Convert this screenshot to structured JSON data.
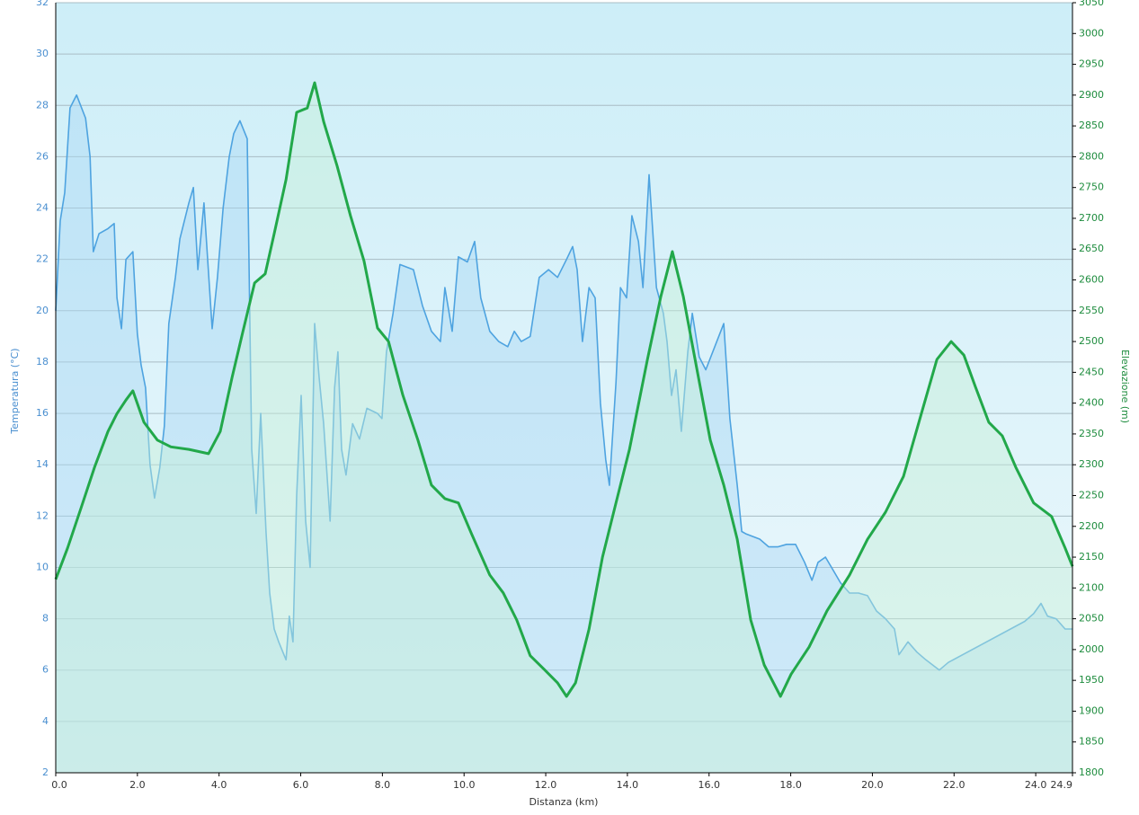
{
  "chart_data": {
    "type": "line",
    "x_label": "Distanza  (km)",
    "y_label": "Temperatura (°C)",
    "y2_label": "Elevazione (m)",
    "xlim": [
      0,
      24.9
    ],
    "xticks": [
      {
        "value": 0,
        "label": "0.0"
      },
      {
        "value": 2,
        "label": "2.0"
      },
      {
        "value": 4,
        "label": "4.0"
      },
      {
        "value": 6,
        "label": "6.0"
      },
      {
        "value": 8,
        "label": "8.0"
      },
      {
        "value": 10,
        "label": "10.0"
      },
      {
        "value": 12,
        "label": "12.0"
      },
      {
        "value": 14,
        "label": "14.0"
      },
      {
        "value": 16,
        "label": "16.0"
      },
      {
        "value": 18,
        "label": "18.0"
      },
      {
        "value": 20,
        "label": "20.0"
      },
      {
        "value": 22,
        "label": "22.0"
      },
      {
        "value": 24,
        "label": "24.0"
      },
      24.9
    ],
    "ylim": [
      2,
      32
    ],
    "yticks": [
      2,
      4,
      6,
      8,
      10,
      12,
      14,
      16,
      18,
      20,
      22,
      24,
      26,
      28,
      30,
      32
    ],
    "y2lim": [
      1800,
      3050
    ],
    "y2ticks": [
      1800,
      1850,
      1900,
      1950,
      2000,
      2050,
      2100,
      2150,
      2200,
      2250,
      2300,
      2350,
      2400,
      2450,
      2500,
      2550,
      2600,
      2650,
      2700,
      2750,
      2800,
      2850,
      2900,
      2950,
      3000,
      3050
    ],
    "grid": true,
    "series": [
      {
        "color": "#4ea3e0",
        "fill": "#a9d6f3",
        "axis": "y",
        "x": [
          0,
          0.11,
          0.22,
          0.35,
          0.51,
          0.73,
          0.84,
          0.92,
          1.06,
          1.28,
          1.43,
          1.5,
          1.61,
          1.72,
          1.89,
          2,
          2.09,
          2.2,
          2.31,
          2.42,
          2.55,
          2.66,
          2.77,
          2.93,
          3.04,
          3.26,
          3.37,
          3.48,
          3.63,
          3.83,
          3.96,
          4.1,
          4.25,
          4.36,
          4.51,
          4.69,
          4.8,
          4.91,
          5.02,
          5.15,
          5.24,
          5.35,
          5.46,
          5.64,
          5.72,
          5.81,
          5.9,
          6.01,
          6.12,
          6.23,
          6.34,
          6.45,
          6.56,
          6.72,
          6.83,
          6.91,
          7,
          7.11,
          7.27,
          7.44,
          7.62,
          7.88,
          7.99,
          8.1,
          8.26,
          8.43,
          8.76,
          8.98,
          9.2,
          9.42,
          9.53,
          9.71,
          9.86,
          10.08,
          10.26,
          10.41,
          10.63,
          10.85,
          11.07,
          11.23,
          11.4,
          11.62,
          11.84,
          12.07,
          12.29,
          12.51,
          12.66,
          12.77,
          12.9,
          13.06,
          13.21,
          13.34,
          13.47,
          13.56,
          13.72,
          13.83,
          13.98,
          14.11,
          14.27,
          14.38,
          14.53,
          14.71,
          14.88,
          14.97,
          15.08,
          15.19,
          15.32,
          15.48,
          15.59,
          15.76,
          15.92,
          16.14,
          16.36,
          16.51,
          16.69,
          16.8,
          16.91,
          17.24,
          17.46,
          17.68,
          17.9,
          18.12,
          18.34,
          18.52,
          18.67,
          18.85,
          19,
          19.22,
          19.44,
          19.66,
          19.88,
          20.1,
          20.32,
          20.54,
          20.65,
          20.87,
          21.09,
          21.31,
          21.64,
          21.86,
          23.73,
          23.95,
          24.13,
          24.29,
          24.5,
          24.72,
          24.9
        ],
        "values": [
          20,
          23.5,
          24.6,
          27.9,
          28.4,
          27.5,
          26,
          22.3,
          23,
          23.2,
          23.4,
          20.5,
          19.3,
          22,
          22.3,
          19.1,
          17.9,
          17,
          14,
          12.7,
          13.9,
          15.5,
          19.5,
          21.3,
          22.8,
          24.2,
          24.8,
          21.6,
          24.2,
          19.3,
          21.3,
          24,
          26,
          26.9,
          27.4,
          26.7,
          14.6,
          12.1,
          16,
          11.4,
          9,
          7.6,
          7.1,
          6.4,
          8.1,
          7.1,
          12.8,
          16.7,
          11.8,
          10,
          19.5,
          17.4,
          15.6,
          11.8,
          17,
          18.4,
          14.6,
          13.6,
          15.6,
          15,
          16.2,
          16,
          15.8,
          18.4,
          19.9,
          21.8,
          21.6,
          20.2,
          19.2,
          18.8,
          20.9,
          19.2,
          22.1,
          21.9,
          22.7,
          20.5,
          19.2,
          18.8,
          18.6,
          19.2,
          18.8,
          19,
          21.3,
          21.6,
          21.3,
          22,
          22.5,
          21.6,
          18.8,
          20.9,
          20.5,
          16.4,
          14.2,
          13.2,
          17.2,
          20.9,
          20.5,
          23.7,
          22.7,
          20.9,
          25.3,
          20.9,
          19.9,
          18.8,
          16.7,
          17.7,
          15.3,
          18.4,
          19.9,
          18.2,
          17.7,
          18.6,
          19.5,
          15.8,
          13.2,
          11.4,
          11.3,
          11.1,
          10.8,
          10.8,
          10.9,
          10.9,
          10.2,
          9.5,
          10.2,
          10.4,
          10,
          9.4,
          9,
          9,
          8.9,
          8.3,
          8,
          7.6,
          6.6,
          7.1,
          6.7,
          6.4,
          6,
          6.3,
          7.9,
          8.2,
          8.6,
          8.1,
          8,
          7.6,
          7.6
        ]
      },
      {
        "color": "#22a84a",
        "fill": "#c6f0d8",
        "axis": "y2",
        "x": [
          0,
          0.29,
          0.62,
          0.95,
          1.28,
          1.5,
          1.72,
          1.89,
          2.16,
          2.49,
          2.82,
          3.26,
          3.74,
          4.03,
          4.32,
          4.58,
          4.87,
          5.13,
          5.35,
          5.64,
          5.9,
          6.16,
          6.34,
          6.56,
          6.89,
          7.22,
          7.55,
          7.88,
          8.15,
          8.5,
          8.87,
          9.2,
          9.53,
          9.86,
          10.19,
          10.63,
          10.96,
          11.29,
          11.62,
          11.96,
          12.29,
          12.51,
          12.73,
          13.06,
          13.39,
          13.72,
          14.05,
          14.49,
          14.82,
          15.1,
          15.37,
          15.7,
          16.03,
          16.36,
          16.69,
          17.02,
          17.35,
          17.75,
          18.01,
          18.45,
          18.89,
          19.44,
          19.88,
          20.32,
          20.76,
          21.2,
          21.58,
          21.93,
          22.24,
          22.52,
          22.85,
          23.18,
          23.51,
          23.95,
          24.39,
          24.72,
          24.9
        ],
        "values": [
          2114,
          2165,
          2230,
          2296,
          2354,
          2383,
          2405,
          2420,
          2369,
          2340,
          2329,
          2325,
          2318,
          2354,
          2442,
          2515,
          2595,
          2610,
          2675,
          2763,
          2872,
          2879,
          2920,
          2857,
          2785,
          2704,
          2631,
          2522,
          2500,
          2413,
          2340,
          2267,
          2245,
          2238,
          2187,
          2121,
          2092,
          2048,
          1990,
          1968,
          1946,
          1924,
          1946,
          2033,
          2150,
          2238,
          2325,
          2471,
          2573,
          2646,
          2573,
          2456,
          2340,
          2267,
          2179,
          2048,
          1975,
          1924,
          1960,
          2004,
          2063,
          2121,
          2179,
          2223,
          2281,
          2383,
          2471,
          2500,
          2478,
          2427,
          2369,
          2347,
          2296,
          2238,
          2216,
          2165,
          2135
        ]
      }
    ]
  }
}
